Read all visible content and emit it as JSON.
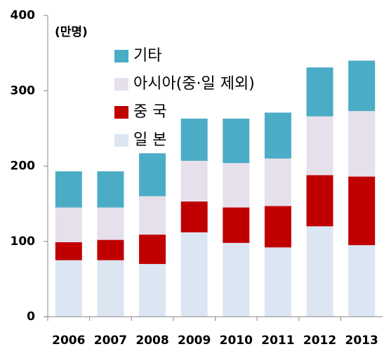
{
  "chart_data": {
    "type": "stacked_bar",
    "unit_label": "(만명)",
    "categories": [
      "2006",
      "2007",
      "2008",
      "2009",
      "2010",
      "2011",
      "2012",
      "2013"
    ],
    "series": [
      {
        "name": "일 본",
        "color": "#dce6f2",
        "values": [
          75,
          75,
          70,
          112,
          98,
          92,
          120,
          95
        ]
      },
      {
        "name": "중 국",
        "color": "#c00000",
        "values": [
          24,
          27,
          39,
          41,
          47,
          55,
          68,
          91
        ]
      },
      {
        "name": "아시아(중·일 제외)",
        "color": "#e6e0ec",
        "values": [
          46,
          43,
          51,
          54,
          59,
          63,
          78,
          87
        ]
      },
      {
        "name": "기타",
        "color": "#4bacc6",
        "values": [
          48,
          48,
          57,
          56,
          59,
          61,
          65,
          67
        ]
      }
    ],
    "ylim": [
      0,
      400
    ],
    "yticks": [
      0,
      100,
      200,
      300,
      400
    ]
  }
}
